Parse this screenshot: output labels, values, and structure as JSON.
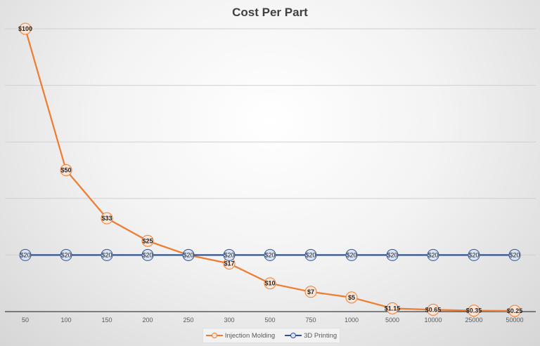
{
  "chart_data": {
    "type": "line",
    "title": "Cost Per Part",
    "xlabel": "",
    "ylabel": "",
    "categories": [
      "50",
      "100",
      "150",
      "200",
      "250",
      "300",
      "500",
      "750",
      "1000",
      "5000",
      "10000",
      "25000",
      "50000"
    ],
    "ylim": [
      0,
      100
    ],
    "grid": true,
    "legend_position": "bottom",
    "series": [
      {
        "name": "Injection Molding",
        "color": "#ED7D31",
        "marker_fill": "#FBE5D6",
        "values": [
          100,
          50,
          33,
          25,
          20,
          17,
          10,
          7,
          5,
          1.15,
          0.65,
          0.35,
          0.25
        ],
        "labels": [
          "$100",
          "$50",
          "$33",
          "$25",
          "$20",
          "$17",
          "$10",
          "$7",
          "$5",
          "$1.15",
          "$0.65",
          "$0.35",
          "$0.25"
        ]
      },
      {
        "name": "3D Printing",
        "color": "#2F5597",
        "marker_fill": "#DAE3F3",
        "values": [
          20,
          20,
          20,
          20,
          20,
          20,
          20,
          20,
          20,
          20,
          20,
          20,
          20
        ],
        "labels": [
          "$20",
          "$20",
          "$20",
          "$20",
          "$20",
          "$20",
          "$20",
          "$20",
          "$20",
          "$20",
          "$20",
          "$20",
          "$20"
        ]
      }
    ]
  }
}
